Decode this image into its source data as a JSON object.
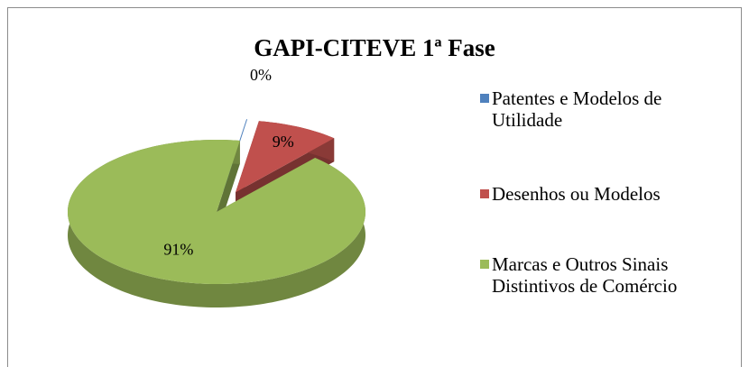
{
  "chart_data": {
    "type": "pie",
    "title": "GAPI-CITEVE 1ª Fase",
    "categories": [
      "Patentes e Modelos de Utilidade",
      "Desenhos ou Modelos",
      "Marcas e Outros Sinais Distintivos de Comércio"
    ],
    "values": [
      0,
      9,
      91
    ],
    "value_labels": [
      "0%",
      "9%",
      "91%"
    ],
    "colors": [
      "#4f81bd",
      "#c0504d",
      "#9bbb59"
    ],
    "legend": "right"
  }
}
